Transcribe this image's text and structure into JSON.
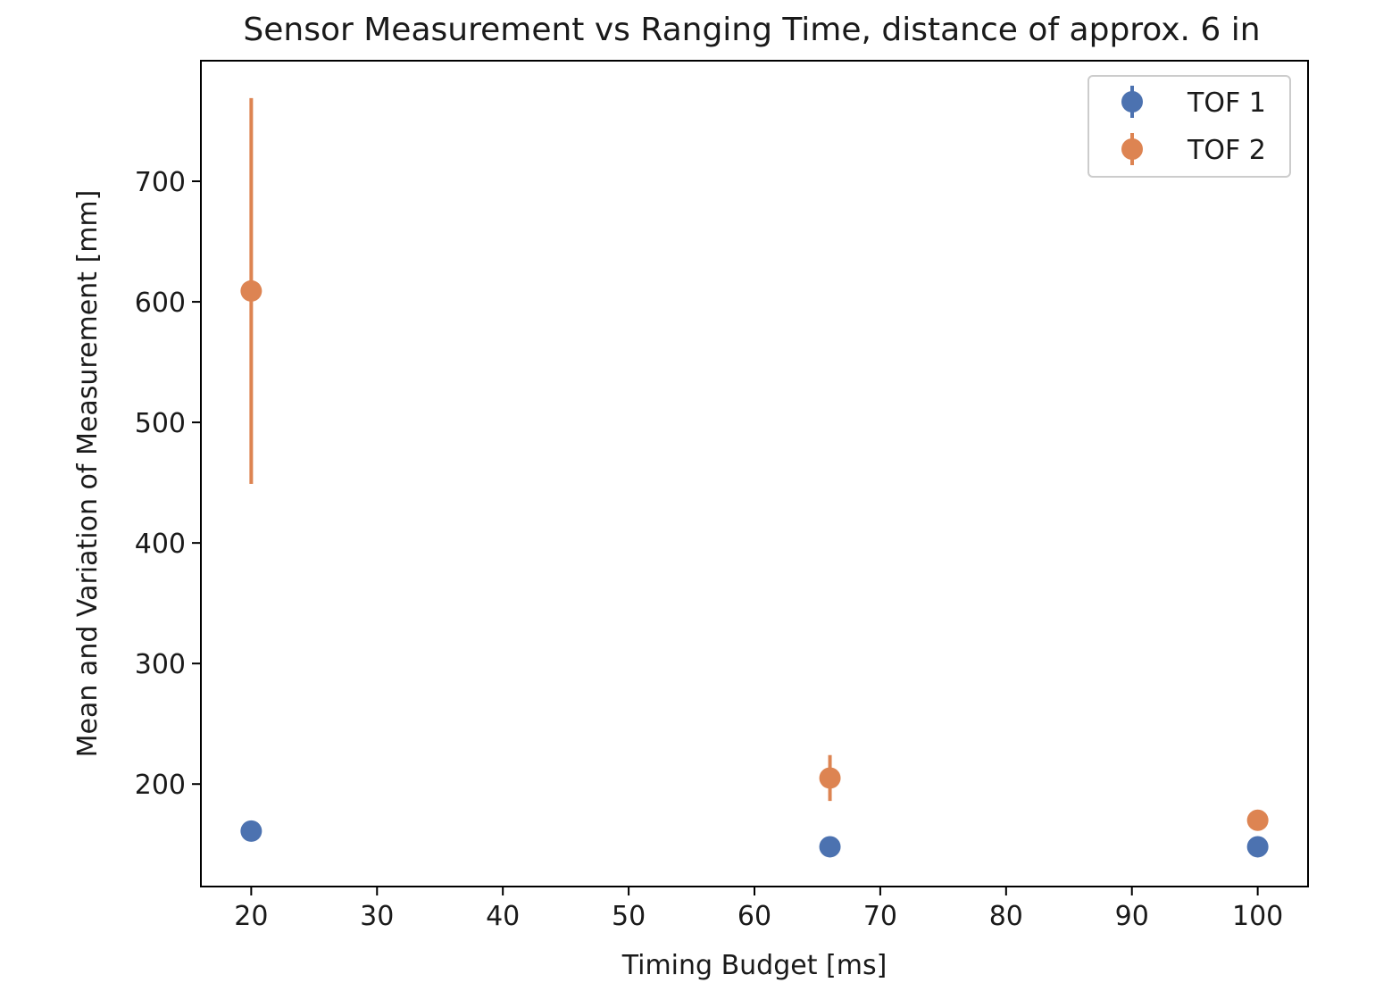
{
  "chart_data": {
    "type": "scatter",
    "title": "Sensor Measurement vs Ranging Time, distance of approx. 6 in",
    "xlabel": "Timing Budget [ms]",
    "ylabel": "Mean and Variation of Measurement [mm]",
    "xlim": [
      16,
      104
    ],
    "ylim": [
      115,
      800
    ],
    "xticks": [
      20,
      30,
      40,
      50,
      60,
      70,
      80,
      90,
      100
    ],
    "yticks": [
      200,
      300,
      400,
      500,
      600,
      700
    ],
    "grid": false,
    "legend_position": "top-right",
    "series": [
      {
        "name": "TOF 1",
        "color": "#4c72b0",
        "x": [
          20,
          66,
          100
        ],
        "y": [
          161,
          148,
          148
        ],
        "yerr": [
          2,
          2,
          2
        ]
      },
      {
        "name": "TOF 2",
        "color": "#dd8452",
        "x": [
          20,
          66,
          100
        ],
        "y": [
          609,
          205,
          170
        ],
        "yerr": [
          160,
          19,
          2
        ]
      }
    ]
  }
}
